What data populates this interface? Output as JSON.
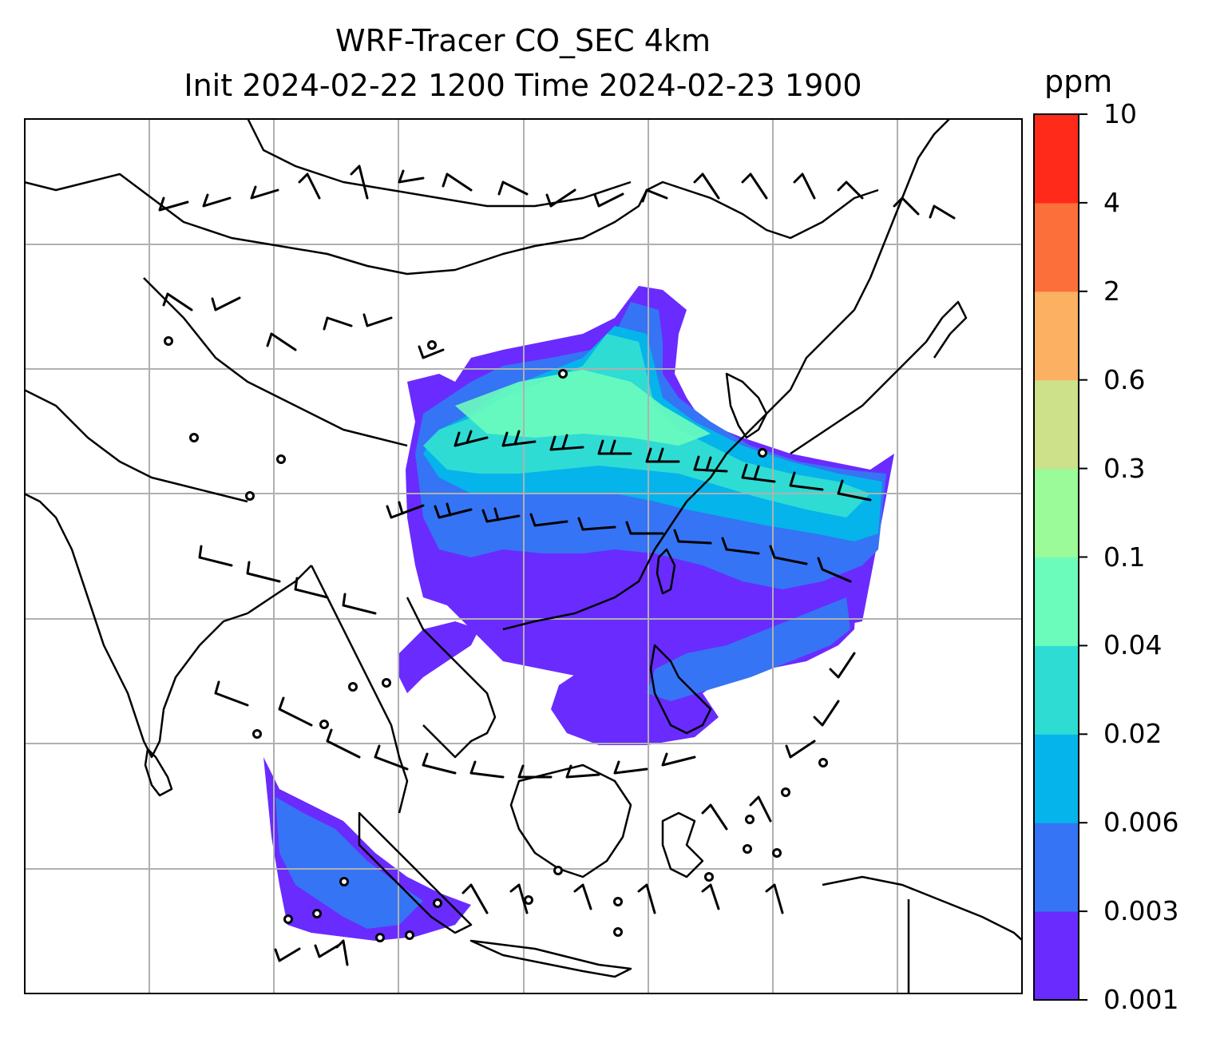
{
  "title": {
    "line1": "WRF-Tracer CO_SEC 4km",
    "line2": "Init 2024-02-22 1200 Time 2024-02-23 1900"
  },
  "colorbar": {
    "unit": "ppm",
    "levels": [
      "0.001",
      "0.003",
      "0.006",
      "0.02",
      "0.04",
      "0.1",
      "0.3",
      "0.6",
      "2",
      "4",
      "10"
    ],
    "colors": [
      "#6a2bff",
      "#3574f4",
      "#05b4ea",
      "#2fdcd4",
      "#6bfcbc",
      "#9afb98",
      "#cde08a",
      "#fcb062",
      "#fc6e3a",
      "#ff2a1a"
    ]
  },
  "map": {
    "land_outline": "#000000",
    "gridline_color": "#b0b0b0",
    "barb_color": "#000000",
    "plume_colors": {
      "lowest": "#6a2bff",
      "low": "#3574f4",
      "mid": "#05b4ea",
      "high": "#2fdcd4",
      "peak": "#6bfcbc"
    }
  }
}
